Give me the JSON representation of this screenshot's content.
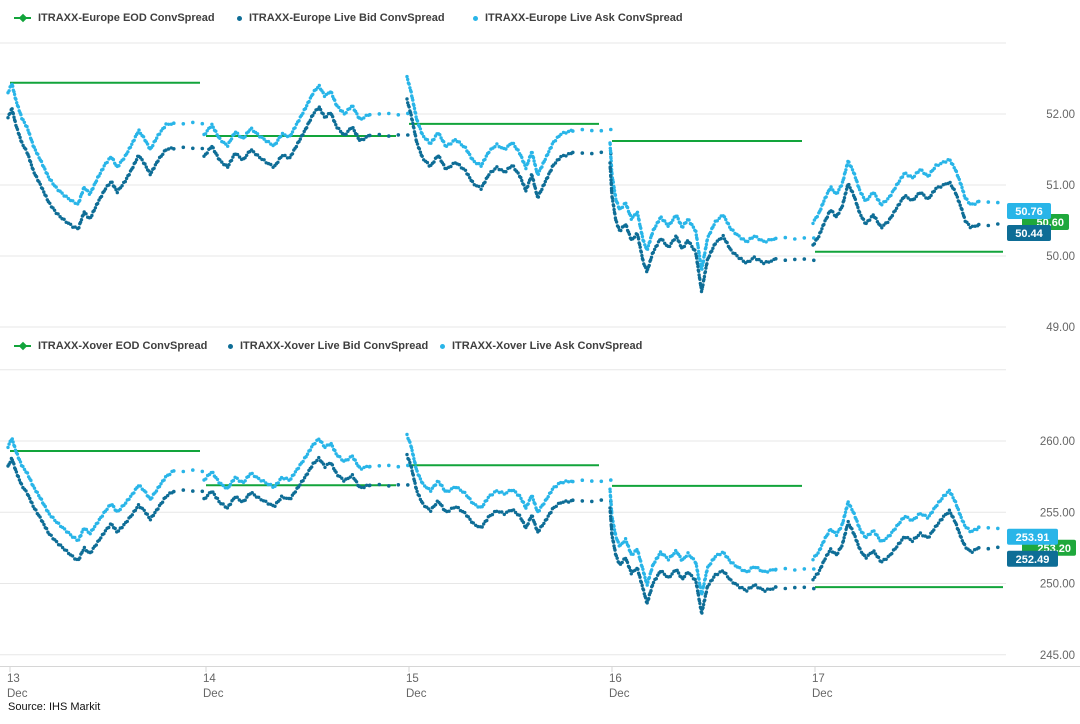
{
  "page": {
    "source_note": "Source: IHS Markit"
  },
  "colors": {
    "eod_green": "#12a43b",
    "badge_green": "#1fa83c",
    "bid_blue": "#0e6d96",
    "ask_cyan": "#29b5e8",
    "grid": "#e7e7e7",
    "axis_line": "#d6d6d6",
    "tick_text": "#666666",
    "legend_text": "#3f3f3f"
  },
  "x_axis": {
    "ticks": [
      {
        "day": "13",
        "month": "Dec"
      },
      {
        "day": "14",
        "month": "Dec"
      },
      {
        "day": "15",
        "month": "Dec"
      },
      {
        "day": "16",
        "month": "Dec"
      },
      {
        "day": "17",
        "month": "Dec"
      }
    ]
  },
  "chart_data": [
    {
      "type": "scatter",
      "title": "ITRAXX-Europe ConvSpread",
      "legend": [
        {
          "label": "ITRAXX-Europe EOD ConvSpread",
          "series": "eod",
          "marker": "line"
        },
        {
          "label": "ITRAXX-Europe Live Bid ConvSpread",
          "series": "bid",
          "marker": "dot"
        },
        {
          "label": "ITRAXX-Europe Live Ask ConvSpread",
          "series": "ask",
          "marker": "dot"
        }
      ],
      "ylim": [
        48.55,
        53.05
      ],
      "yticks": [
        {
          "value": 53,
          "label": ""
        },
        {
          "value": 52,
          "label": "52.00"
        },
        {
          "value": 51,
          "label": "51.00"
        },
        {
          "value": 50,
          "label": "50.00"
        },
        {
          "value": 49,
          "label": "49.00"
        }
      ],
      "x_categories": [
        "13 Dec",
        "14 Dec",
        "15 Dec",
        "16 Dec",
        "17 Dec"
      ],
      "eod_by_day": [
        52.44,
        51.69,
        51.86,
        51.62,
        50.06
      ],
      "ask_offset_by_day": [
        0.35,
        0.3,
        0.32,
        0.3,
        0.32
      ],
      "close_by_day": {
        "bid": [
          51.52,
          51.7,
          51.45,
          49.95,
          50.44
        ],
        "ask": [
          51.87,
          52.0,
          51.77,
          50.25,
          50.76
        ]
      },
      "last_values": {
        "ask": "50.76",
        "eod": "50.60",
        "bid": "50.44"
      },
      "bid_points_by_day": [
        [
          [
            0,
            51.95
          ],
          [
            0.02,
            52.08
          ],
          [
            0.04,
            51.85
          ],
          [
            0.07,
            51.6
          ],
          [
            0.1,
            51.45
          ],
          [
            0.13,
            51.2
          ],
          [
            0.17,
            50.98
          ],
          [
            0.21,
            50.75
          ],
          [
            0.25,
            50.6
          ],
          [
            0.29,
            50.5
          ],
          [
            0.33,
            50.42
          ],
          [
            0.36,
            50.38
          ],
          [
            0.39,
            50.62
          ],
          [
            0.42,
            50.52
          ],
          [
            0.46,
            50.75
          ],
          [
            0.5,
            50.95
          ],
          [
            0.53,
            51.05
          ],
          [
            0.56,
            50.9
          ],
          [
            0.6,
            51.05
          ],
          [
            0.64,
            51.25
          ],
          [
            0.67,
            51.42
          ],
          [
            0.7,
            51.3
          ],
          [
            0.73,
            51.15
          ],
          [
            0.77,
            51.35
          ],
          [
            0.81,
            51.5
          ],
          [
            0.85,
            51.52
          ]
        ],
        [
          [
            0,
            51.4
          ],
          [
            0.04,
            51.55
          ],
          [
            0.08,
            51.35
          ],
          [
            0.12,
            51.25
          ],
          [
            0.16,
            51.45
          ],
          [
            0.2,
            51.35
          ],
          [
            0.24,
            51.5
          ],
          [
            0.28,
            51.4
          ],
          [
            0.32,
            51.32
          ],
          [
            0.36,
            51.25
          ],
          [
            0.4,
            51.42
          ],
          [
            0.44,
            51.38
          ],
          [
            0.48,
            51.58
          ],
          [
            0.52,
            51.78
          ],
          [
            0.56,
            52.0
          ],
          [
            0.59,
            52.1
          ],
          [
            0.62,
            51.95
          ],
          [
            0.65,
            52.02
          ],
          [
            0.68,
            51.82
          ],
          [
            0.72,
            51.7
          ],
          [
            0.76,
            51.82
          ],
          [
            0.8,
            51.62
          ],
          [
            0.85,
            51.7
          ]
        ],
        [
          [
            0,
            52.2
          ],
          [
            0.02,
            52.0
          ],
          [
            0.05,
            51.6
          ],
          [
            0.08,
            51.38
          ],
          [
            0.12,
            51.26
          ],
          [
            0.16,
            51.42
          ],
          [
            0.2,
            51.22
          ],
          [
            0.25,
            51.32
          ],
          [
            0.3,
            51.2
          ],
          [
            0.34,
            51.02
          ],
          [
            0.38,
            50.95
          ],
          [
            0.42,
            51.15
          ],
          [
            0.46,
            51.25
          ],
          [
            0.5,
            51.18
          ],
          [
            0.54,
            51.28
          ],
          [
            0.58,
            51.12
          ],
          [
            0.61,
            50.92
          ],
          [
            0.64,
            51.15
          ],
          [
            0.67,
            50.82
          ],
          [
            0.71,
            51.05
          ],
          [
            0.75,
            51.28
          ],
          [
            0.79,
            51.4
          ],
          [
            0.85,
            51.45
          ]
        ],
        [
          [
            0,
            51.3
          ],
          [
            0.01,
            50.85
          ],
          [
            0.03,
            50.5
          ],
          [
            0.05,
            50.35
          ],
          [
            0.08,
            50.45
          ],
          [
            0.11,
            50.22
          ],
          [
            0.14,
            50.32
          ],
          [
            0.17,
            49.92
          ],
          [
            0.19,
            49.78
          ],
          [
            0.22,
            50.05
          ],
          [
            0.26,
            50.25
          ],
          [
            0.3,
            50.12
          ],
          [
            0.34,
            50.28
          ],
          [
            0.37,
            50.1
          ],
          [
            0.4,
            50.22
          ],
          [
            0.44,
            50.05
          ],
          [
            0.47,
            49.5
          ],
          [
            0.5,
            49.95
          ],
          [
            0.54,
            50.18
          ],
          [
            0.58,
            50.28
          ],
          [
            0.62,
            50.08
          ],
          [
            0.66,
            49.98
          ],
          [
            0.7,
            49.9
          ],
          [
            0.74,
            49.98
          ],
          [
            0.79,
            49.9
          ],
          [
            0.85,
            49.95
          ]
        ],
        [
          [
            0,
            50.15
          ],
          [
            0.03,
            50.28
          ],
          [
            0.06,
            50.48
          ],
          [
            0.09,
            50.65
          ],
          [
            0.12,
            50.55
          ],
          [
            0.15,
            50.7
          ],
          [
            0.18,
            51.02
          ],
          [
            0.21,
            50.85
          ],
          [
            0.24,
            50.6
          ],
          [
            0.27,
            50.45
          ],
          [
            0.31,
            50.58
          ],
          [
            0.35,
            50.4
          ],
          [
            0.39,
            50.5
          ],
          [
            0.43,
            50.68
          ],
          [
            0.47,
            50.85
          ],
          [
            0.51,
            50.78
          ],
          [
            0.55,
            50.9
          ],
          [
            0.59,
            50.8
          ],
          [
            0.63,
            50.95
          ],
          [
            0.67,
            51.0
          ],
          [
            0.7,
            51.04
          ],
          [
            0.73,
            50.9
          ],
          [
            0.76,
            50.68
          ],
          [
            0.78,
            50.5
          ],
          [
            0.81,
            50.4
          ],
          [
            0.85,
            50.44
          ]
        ]
      ]
    },
    {
      "type": "scatter",
      "title": "ITRAXX-Xover ConvSpread",
      "legend": [
        {
          "label": "ITRAXX-Xover EOD ConvSpread",
          "series": "eod",
          "marker": "line"
        },
        {
          "label": "ITRAXX-Xover Live Bid ConvSpread",
          "series": "bid",
          "marker": "dot"
        },
        {
          "label": "ITRAXX-Xover Live Ask ConvSpread",
          "series": "ask",
          "marker": "dot"
        }
      ],
      "ylim": [
        244.0,
        265.5
      ],
      "yticks": [
        {
          "value": 265,
          "label": ""
        },
        {
          "value": 260,
          "label": "260.00"
        },
        {
          "value": 255,
          "label": "255.00"
        },
        {
          "value": 250,
          "label": "250.00"
        },
        {
          "value": 245,
          "label": "245.00"
        }
      ],
      "x_categories": [
        "13 Dec",
        "14 Dec",
        "15 Dec",
        "16 Dec",
        "17 Dec"
      ],
      "eod_by_day": [
        259.3,
        256.9,
        258.3,
        256.85,
        249.75
      ],
      "ask_offset_by_day": [
        1.4,
        1.35,
        1.4,
        1.3,
        1.42
      ],
      "close_by_day": {
        "bid": [
          256.5,
          256.9,
          255.8,
          249.7,
          252.49
        ],
        "ask": [
          257.9,
          258.25,
          257.2,
          251.0,
          253.91
        ]
      },
      "last_values": {
        "ask": "253.91",
        "eod": "253.20",
        "bid": "252.49"
      },
      "bid_points_by_day": [
        [
          [
            0,
            258.2
          ],
          [
            0.02,
            258.8
          ],
          [
            0.04,
            257.9
          ],
          [
            0.07,
            256.9
          ],
          [
            0.1,
            256.3
          ],
          [
            0.13,
            255.4
          ],
          [
            0.17,
            254.5
          ],
          [
            0.21,
            253.5
          ],
          [
            0.25,
            252.9
          ],
          [
            0.29,
            252.4
          ],
          [
            0.33,
            251.9
          ],
          [
            0.36,
            251.6
          ],
          [
            0.39,
            252.5
          ],
          [
            0.42,
            252.1
          ],
          [
            0.46,
            252.9
          ],
          [
            0.5,
            253.7
          ],
          [
            0.53,
            254.2
          ],
          [
            0.56,
            253.6
          ],
          [
            0.6,
            254.2
          ],
          [
            0.64,
            254.9
          ],
          [
            0.67,
            255.5
          ],
          [
            0.7,
            255.1
          ],
          [
            0.73,
            254.5
          ],
          [
            0.77,
            255.3
          ],
          [
            0.81,
            256.1
          ],
          [
            0.85,
            256.5
          ]
        ],
        [
          [
            0,
            255.9
          ],
          [
            0.04,
            256.5
          ],
          [
            0.08,
            255.7
          ],
          [
            0.12,
            255.3
          ],
          [
            0.16,
            256.1
          ],
          [
            0.2,
            255.7
          ],
          [
            0.24,
            256.4
          ],
          [
            0.28,
            256.0
          ],
          [
            0.32,
            255.7
          ],
          [
            0.36,
            255.4
          ],
          [
            0.4,
            256.1
          ],
          [
            0.44,
            255.9
          ],
          [
            0.48,
            256.7
          ],
          [
            0.52,
            257.5
          ],
          [
            0.56,
            258.4
          ],
          [
            0.59,
            258.8
          ],
          [
            0.62,
            258.2
          ],
          [
            0.65,
            258.5
          ],
          [
            0.68,
            257.7
          ],
          [
            0.72,
            257.2
          ],
          [
            0.76,
            257.6
          ],
          [
            0.8,
            256.7
          ],
          [
            0.85,
            256.9
          ]
        ],
        [
          [
            0,
            259.0
          ],
          [
            0.02,
            258.3
          ],
          [
            0.05,
            256.5
          ],
          [
            0.08,
            255.6
          ],
          [
            0.12,
            255.1
          ],
          [
            0.16,
            255.8
          ],
          [
            0.2,
            255.0
          ],
          [
            0.25,
            255.4
          ],
          [
            0.3,
            254.9
          ],
          [
            0.34,
            254.2
          ],
          [
            0.38,
            253.9
          ],
          [
            0.42,
            254.7
          ],
          [
            0.46,
            255.1
          ],
          [
            0.5,
            254.9
          ],
          [
            0.54,
            255.2
          ],
          [
            0.58,
            254.7
          ],
          [
            0.61,
            253.9
          ],
          [
            0.64,
            254.8
          ],
          [
            0.67,
            253.6
          ],
          [
            0.71,
            254.4
          ],
          [
            0.75,
            255.3
          ],
          [
            0.79,
            255.7
          ],
          [
            0.85,
            255.8
          ]
        ],
        [
          [
            0,
            255.3
          ],
          [
            0.01,
            253.4
          ],
          [
            0.03,
            252.0
          ],
          [
            0.05,
            251.3
          ],
          [
            0.08,
            251.8
          ],
          [
            0.11,
            250.7
          ],
          [
            0.14,
            251.1
          ],
          [
            0.17,
            249.6
          ],
          [
            0.19,
            248.6
          ],
          [
            0.22,
            250.0
          ],
          [
            0.26,
            250.9
          ],
          [
            0.3,
            250.4
          ],
          [
            0.34,
            251.0
          ],
          [
            0.37,
            250.3
          ],
          [
            0.4,
            250.8
          ],
          [
            0.44,
            250.2
          ],
          [
            0.47,
            247.9
          ],
          [
            0.5,
            249.8
          ],
          [
            0.54,
            250.6
          ],
          [
            0.58,
            250.9
          ],
          [
            0.62,
            250.2
          ],
          [
            0.66,
            249.8
          ],
          [
            0.7,
            249.5
          ],
          [
            0.74,
            249.9
          ],
          [
            0.79,
            249.5
          ],
          [
            0.85,
            249.7
          ]
        ],
        [
          [
            0,
            250.3
          ],
          [
            0.03,
            250.8
          ],
          [
            0.06,
            251.7
          ],
          [
            0.09,
            252.4
          ],
          [
            0.12,
            252.0
          ],
          [
            0.15,
            252.7
          ],
          [
            0.18,
            254.3
          ],
          [
            0.21,
            253.5
          ],
          [
            0.24,
            252.4
          ],
          [
            0.27,
            251.8
          ],
          [
            0.31,
            252.3
          ],
          [
            0.35,
            251.5
          ],
          [
            0.39,
            251.9
          ],
          [
            0.43,
            252.6
          ],
          [
            0.47,
            253.3
          ],
          [
            0.51,
            253.0
          ],
          [
            0.55,
            253.5
          ],
          [
            0.59,
            253.2
          ],
          [
            0.63,
            254.0
          ],
          [
            0.67,
            254.7
          ],
          [
            0.7,
            255.1
          ],
          [
            0.73,
            254.3
          ],
          [
            0.76,
            253.2
          ],
          [
            0.78,
            252.6
          ],
          [
            0.81,
            252.2
          ],
          [
            0.85,
            252.49
          ]
        ]
      ]
    }
  ]
}
